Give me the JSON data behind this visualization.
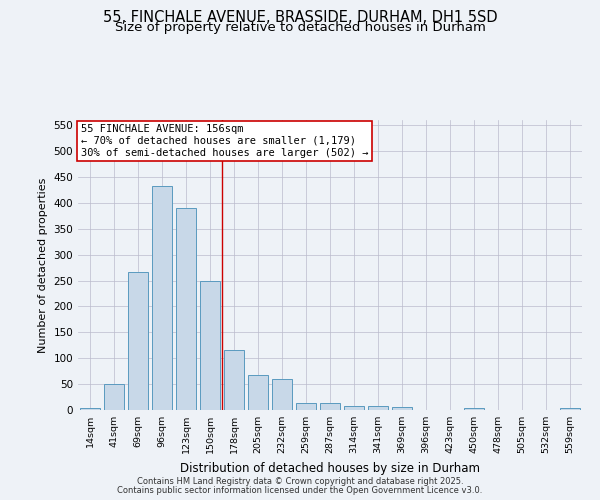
{
  "title1": "55, FINCHALE AVENUE, BRASSIDE, DURHAM, DH1 5SD",
  "title2": "Size of property relative to detached houses in Durham",
  "xlabel": "Distribution of detached houses by size in Durham",
  "ylabel": "Number of detached properties",
  "categories": [
    "14sqm",
    "41sqm",
    "69sqm",
    "96sqm",
    "123sqm",
    "150sqm",
    "178sqm",
    "205sqm",
    "232sqm",
    "259sqm",
    "287sqm",
    "314sqm",
    "341sqm",
    "369sqm",
    "396sqm",
    "423sqm",
    "450sqm",
    "478sqm",
    "505sqm",
    "532sqm",
    "559sqm"
  ],
  "values": [
    4,
    50,
    267,
    432,
    390,
    250,
    116,
    68,
    60,
    13,
    14,
    8,
    7,
    5,
    0,
    0,
    3,
    0,
    0,
    0,
    3
  ],
  "bar_color": "#c8d8e8",
  "bar_edge_color": "#5a9abf",
  "vline_x": 5.5,
  "vline_color": "#cc0000",
  "annotation_text": "55 FINCHALE AVENUE: 156sqm\n← 70% of detached houses are smaller (1,179)\n30% of semi-detached houses are larger (502) →",
  "annotation_box_color": "#ffffff",
  "annotation_box_edge": "#cc0000",
  "ylim": [
    0,
    560
  ],
  "yticks": [
    0,
    50,
    100,
    150,
    200,
    250,
    300,
    350,
    400,
    450,
    500,
    550
  ],
  "footer1": "Contains HM Land Registry data © Crown copyright and database right 2025.",
  "footer2": "Contains public sector information licensed under the Open Government Licence v3.0.",
  "bg_color": "#eef2f7",
  "title_fontsize": 10.5,
  "subtitle_fontsize": 9.5
}
